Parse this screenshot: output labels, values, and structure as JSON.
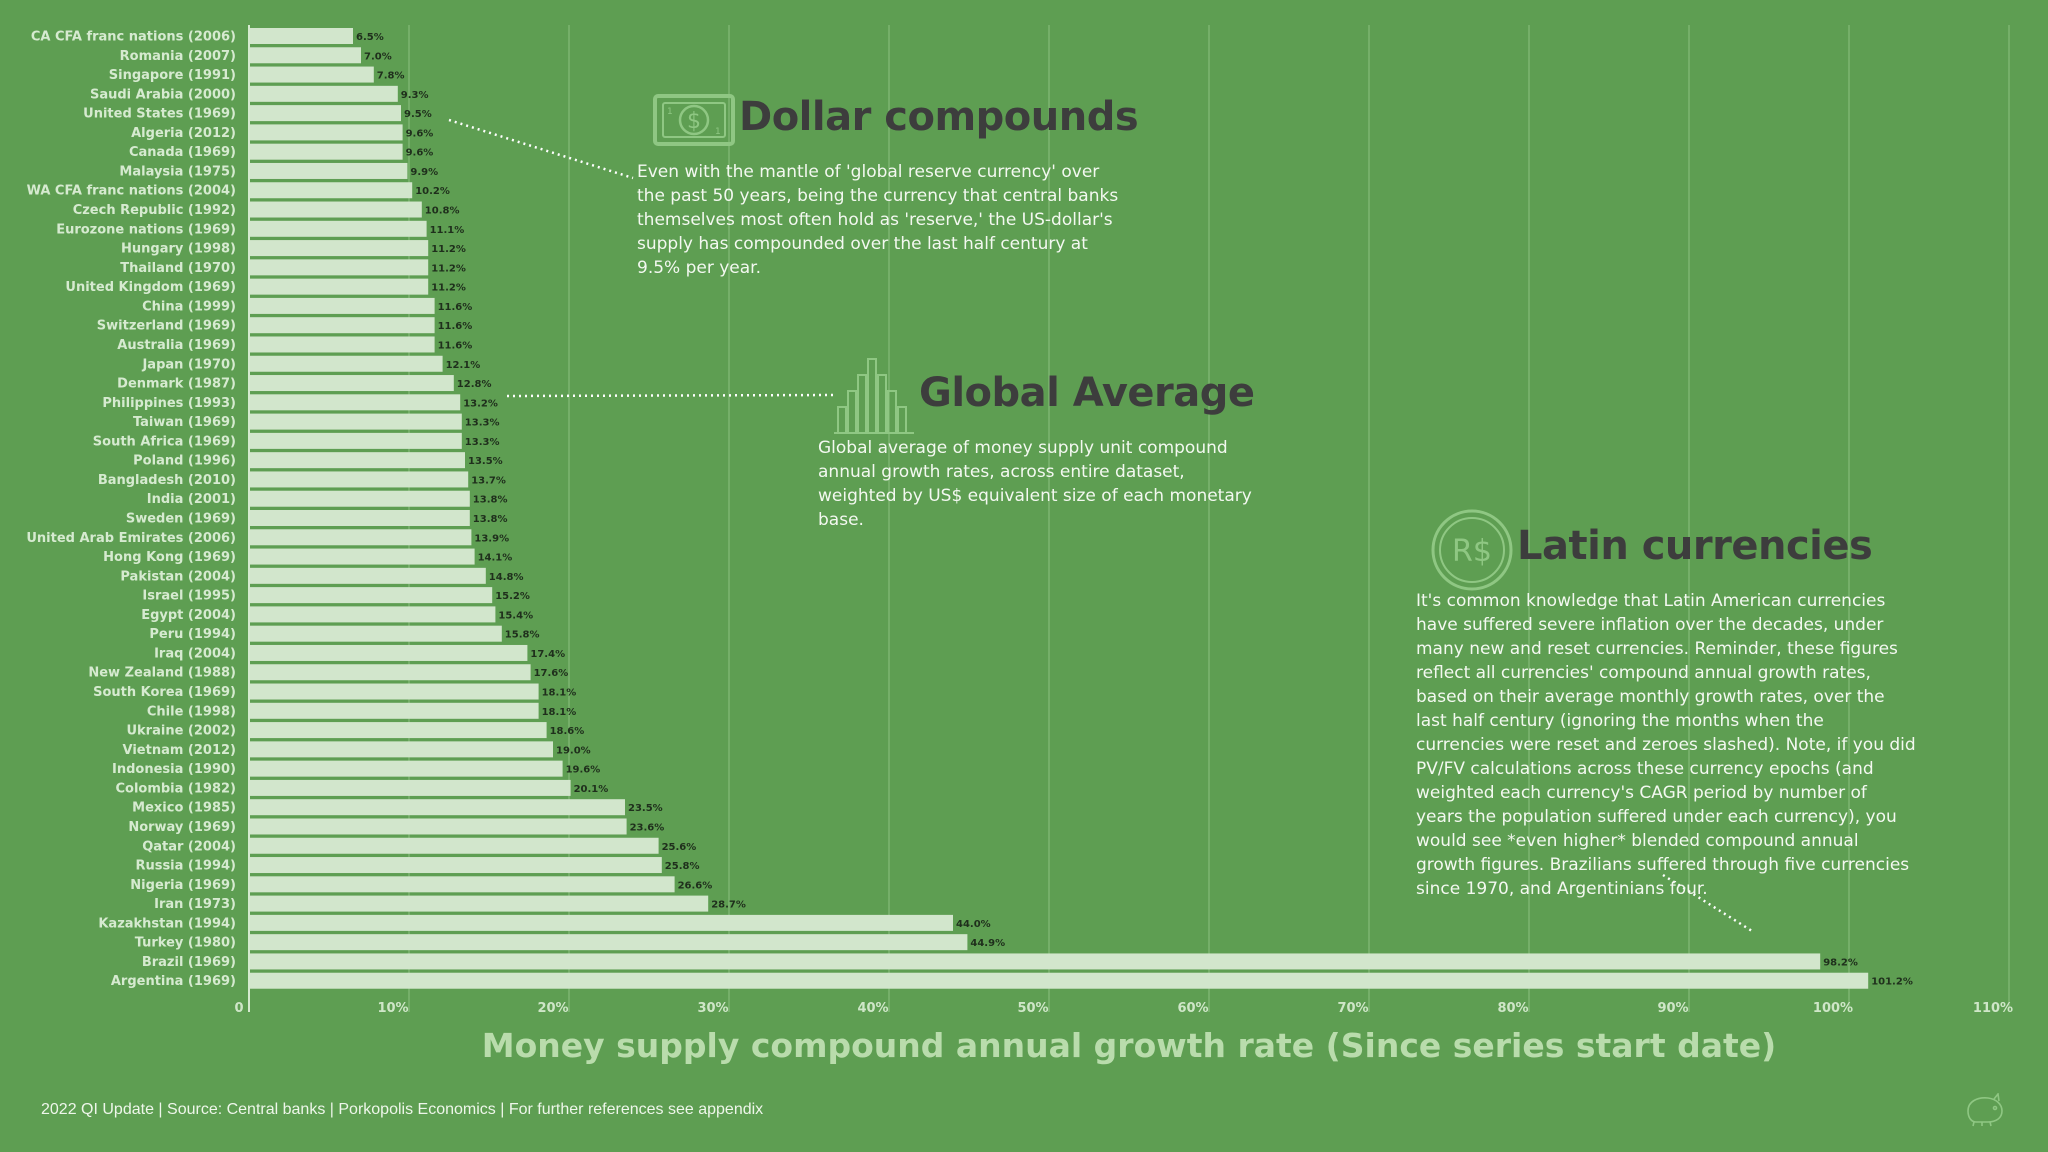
{
  "colors": {
    "background": "#5e9e52",
    "bar": "#d2e6cc",
    "grid": "#8cc080",
    "annotation_title": "#3d3d3d",
    "icon": "#8fc783"
  },
  "chart_data": {
    "type": "bar",
    "orientation": "horizontal",
    "categories": [
      "CA CFA franc nations (2006)",
      "Romania (2007)",
      "Singapore (1991)",
      "Saudi Arabia (2000)",
      "United States (1969)",
      "Algeria (2012)",
      "Canada (1969)",
      "Malaysia (1975)",
      "WA CFA franc nations (2004)",
      "Czech Republic (1992)",
      "Eurozone nations (1969)",
      "Hungary (1998)",
      "Thailand (1970)",
      "United Kingdom (1969)",
      "China (1999)",
      "Switzerland (1969)",
      "Australia (1969)",
      "Japan (1970)",
      "Denmark (1987)",
      "Philippines (1993)",
      "Taiwan (1969)",
      "South Africa (1969)",
      "Poland (1996)",
      "Bangladesh (2010)",
      "India (2001)",
      "Sweden (1969)",
      "United Arab Emirates (2006)",
      "Hong Kong (1969)",
      "Pakistan (2004)",
      "Israel (1995)",
      "Egypt (2004)",
      "Peru (1994)",
      "Iraq (2004)",
      "New Zealand (1988)",
      "South Korea (1969)",
      "Chile (1998)",
      "Ukraine (2002)",
      "Vietnam (2012)",
      "Indonesia (1990)",
      "Colombia (1982)",
      "Mexico (1985)",
      "Norway (1969)",
      "Qatar (2004)",
      "Russia (1994)",
      "Nigeria (1969)",
      "Iran (1973)",
      "Kazakhstan (1994)",
      "Turkey (1980)",
      "Brazil (1969)",
      "Argentina (1969)"
    ],
    "values": [
      6.5,
      7.0,
      7.8,
      9.3,
      9.5,
      9.6,
      9.6,
      9.9,
      10.2,
      10.8,
      11.1,
      11.2,
      11.2,
      11.2,
      11.6,
      11.6,
      11.6,
      12.1,
      12.8,
      13.2,
      13.3,
      13.3,
      13.5,
      13.7,
      13.8,
      13.8,
      13.9,
      14.1,
      14.8,
      15.2,
      15.4,
      15.8,
      17.4,
      17.6,
      18.1,
      18.1,
      18.6,
      19.0,
      19.6,
      20.1,
      23.5,
      23.6,
      25.6,
      25.8,
      26.6,
      28.7,
      44.0,
      44.9,
      98.2,
      101.2
    ],
    "value_labels": [
      "6.5%",
      "7.0%",
      "7.8%",
      "9.3%",
      "9.5%",
      "9.6%",
      "9.6%",
      "9.9%",
      "10.2%",
      "10.8%",
      "11.1%",
      "11.2%",
      "11.2%",
      "11.2%",
      "11.6%",
      "11.6%",
      "11.6%",
      "12.1%",
      "12.8%",
      "13.2%",
      "13.3%",
      "13.3%",
      "13.5%",
      "13.7%",
      "13.8%",
      "13.8%",
      "13.9%",
      "14.1%",
      "14.8%",
      "15.2%",
      "15.4%",
      "15.8%",
      "17.4%",
      "17.6%",
      "18.1%",
      "18.1%",
      "18.6%",
      "19.0%",
      "19.6%",
      "20.1%",
      "23.5%",
      "23.6%",
      "25.6%",
      "25.8%",
      "26.6%",
      "28.7%",
      "44.0%",
      "44.9%",
      "98.2%",
      "101.2%"
    ],
    "x_ticks": [
      0,
      10,
      20,
      30,
      40,
      50,
      60,
      70,
      80,
      90,
      100,
      110
    ],
    "x_tick_labels": [
      "0",
      "10%",
      "20%",
      "30%",
      "40%",
      "50%",
      "60%",
      "70%",
      "80%",
      "90%",
      "100%",
      "110%"
    ],
    "xlim": [
      0,
      110
    ],
    "xlabel": "Money supply compound annual growth rate (Since series start date)",
    "grid": "vertical"
  },
  "annotations": {
    "dollar": {
      "title": "Dollar compounds",
      "text": "Even with the mantle of 'global reserve currency' over the past 50 years, being the currency that central banks themselves most often hold as 'reserve,' the US-dollar's supply has compounded over the last half century at 9.5% per year.",
      "icon": "dollar-bill-icon",
      "icon_text": "$",
      "icon_corner_digit": "1"
    },
    "global": {
      "title": "Global Average",
      "text": "Global average of money supply unit compound annual growth rates, across entire dataset, weighted by US$ equivalent size of each monetary base.",
      "icon": "histogram-icon"
    },
    "latin": {
      "title": "Latin currencies",
      "text": "It's common knowledge that Latin American currencies have suffered severe inflation over the decades, under many new and reset currencies. Reminder, these figures reflect all currencies' compound annual growth rates, based on their average monthly growth rates, over the last half century (ignoring the months when the currencies were reset and zeroes slashed). Note, if you did PV/FV calculations across these currency epochs (and weighted each currency's CAGR period by number of years the population suffered under each currency), you would see *even higher* blended compound annual growth figures. Brazilians suffered through five currencies since 1970, and Argentinians four.",
      "icon": "real-coin-icon",
      "icon_text": "R$"
    }
  },
  "footer": {
    "text": "2022 QI Update | Source: Central banks | Porkopolis Economics | For further references see appendix",
    "logo_icon": "pig-logo-icon"
  }
}
